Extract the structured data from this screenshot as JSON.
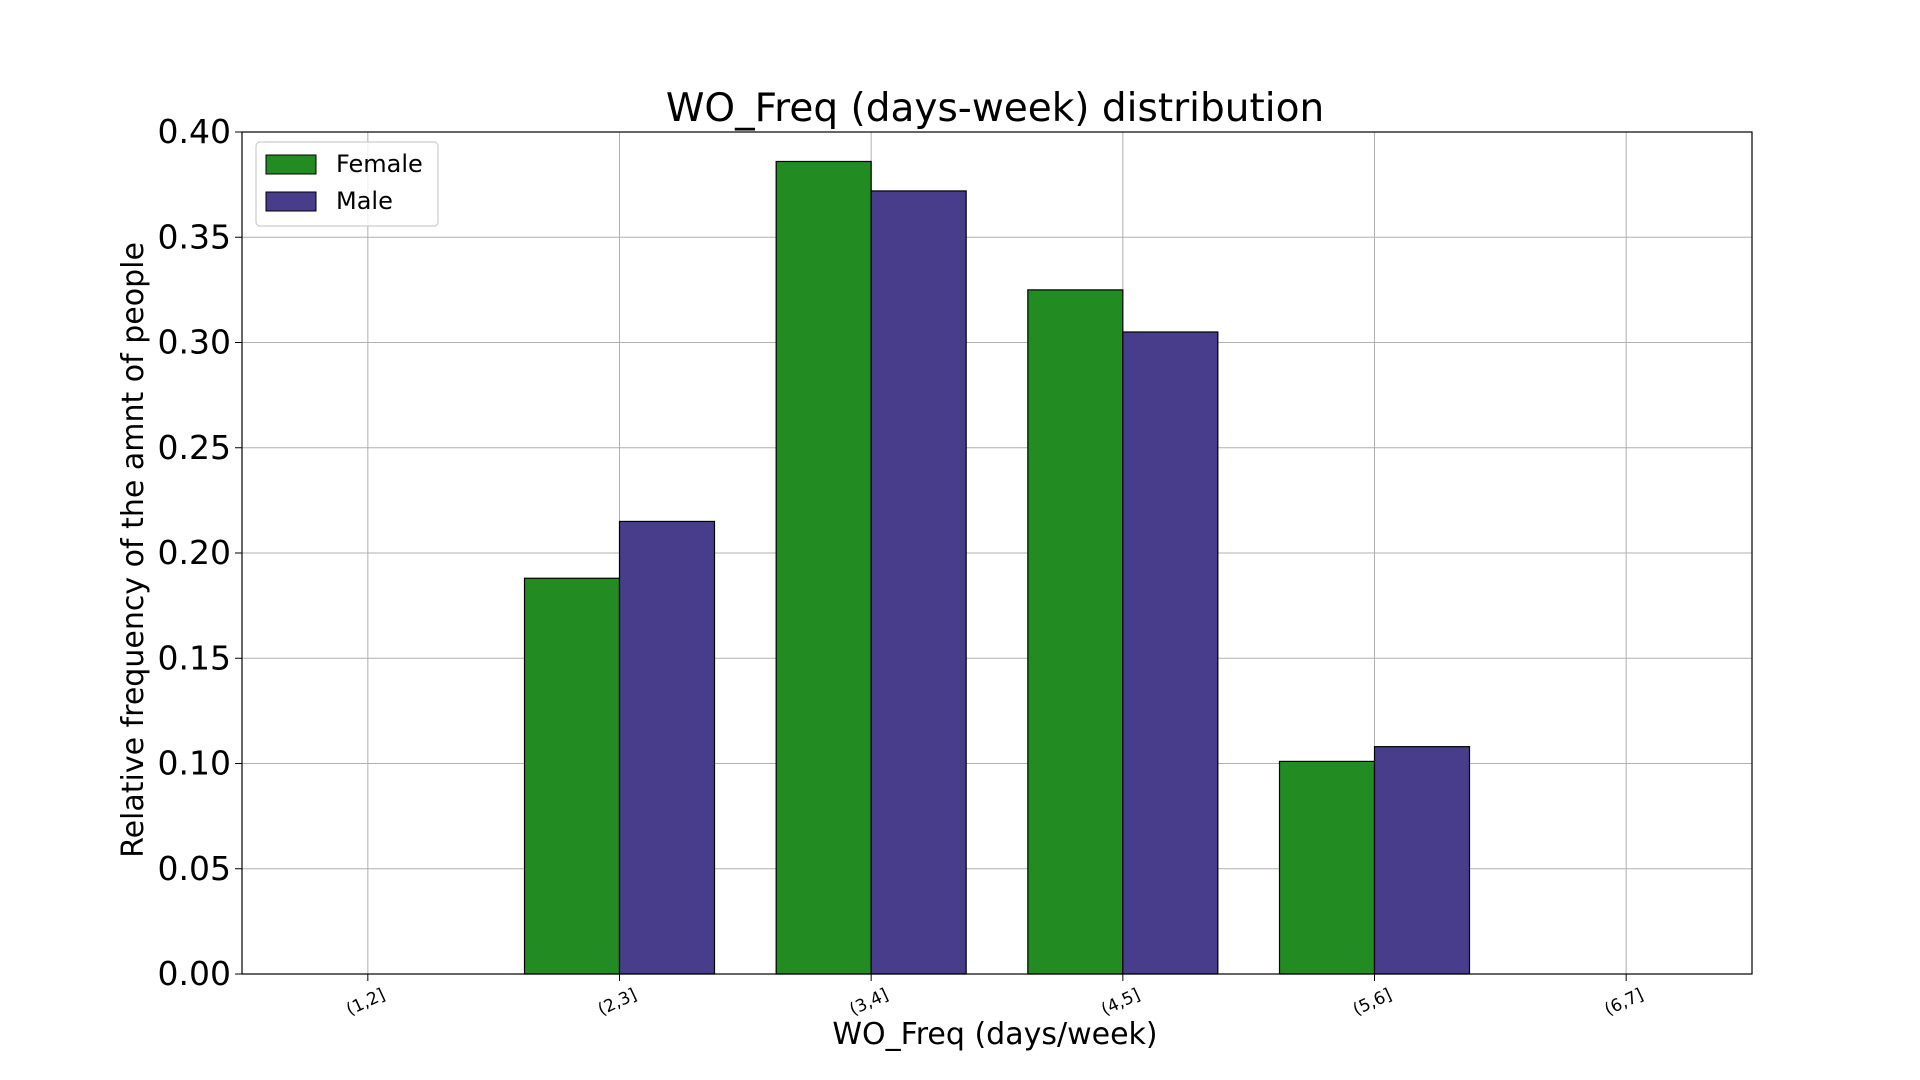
{
  "chart_data": {
    "type": "bar",
    "title": "WO_Freq (days-week) distribution",
    "xlabel": "WO_Freq (days/week)",
    "ylabel": "Relative frequency of the amnt of people",
    "categories": [
      "(1,2]",
      "(2,3]",
      "(3,4]",
      "(4,5]",
      "(5,6]",
      "(6,7]"
    ],
    "series": [
      {
        "name": "Female",
        "color": "#228b22",
        "values": [
          0.0,
          0.188,
          0.386,
          0.325,
          0.101,
          0.0
        ]
      },
      {
        "name": "Male",
        "color": "#483d8b",
        "values": [
          0.0,
          0.215,
          0.372,
          0.305,
          0.108,
          0.0
        ]
      }
    ],
    "ylim": [
      0,
      0.4
    ],
    "yticks": [
      "0.00",
      "0.05",
      "0.10",
      "0.15",
      "0.20",
      "0.25",
      "0.30",
      "0.35",
      "0.40"
    ],
    "grid": true,
    "legend_position": "top-left"
  }
}
